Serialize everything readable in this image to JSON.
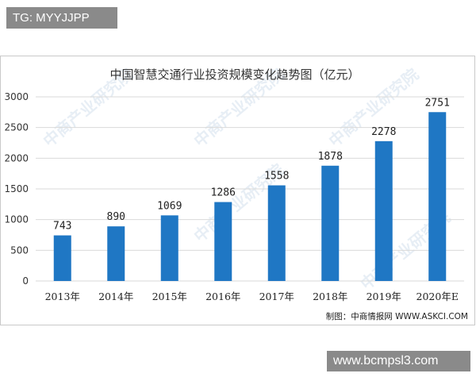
{
  "overlay": {
    "top_tag": "TG: MYYJJPP",
    "bottom_tag": "www.bcmpsl3.com"
  },
  "watermark": "中商产业研究院",
  "source_note": "制图：中商情报网 WWW.ASKCI.COM",
  "colors": {
    "bar": "#1f77c4",
    "grid": "#d9d9d9",
    "text": "#333333"
  },
  "chart_data": {
    "type": "bar",
    "title": "中国智慧交通行业投资规模变化趋势图（亿元）",
    "categories": [
      "2013年",
      "2014年",
      "2015年",
      "2016年",
      "2017年",
      "2018年",
      "2019年",
      "2020年E"
    ],
    "values": [
      743,
      890,
      1069,
      1286,
      1558,
      1878,
      2278,
      2751
    ],
    "data_labels": [
      "743",
      "890",
      "1069",
      "1286",
      "1558",
      "1878",
      "2278",
      "2751"
    ],
    "yticks": [
      "0",
      "500",
      "1000",
      "1500",
      "2000",
      "2500",
      "3000"
    ],
    "ylim": [
      0,
      3000
    ],
    "grid": true,
    "legend": false
  }
}
